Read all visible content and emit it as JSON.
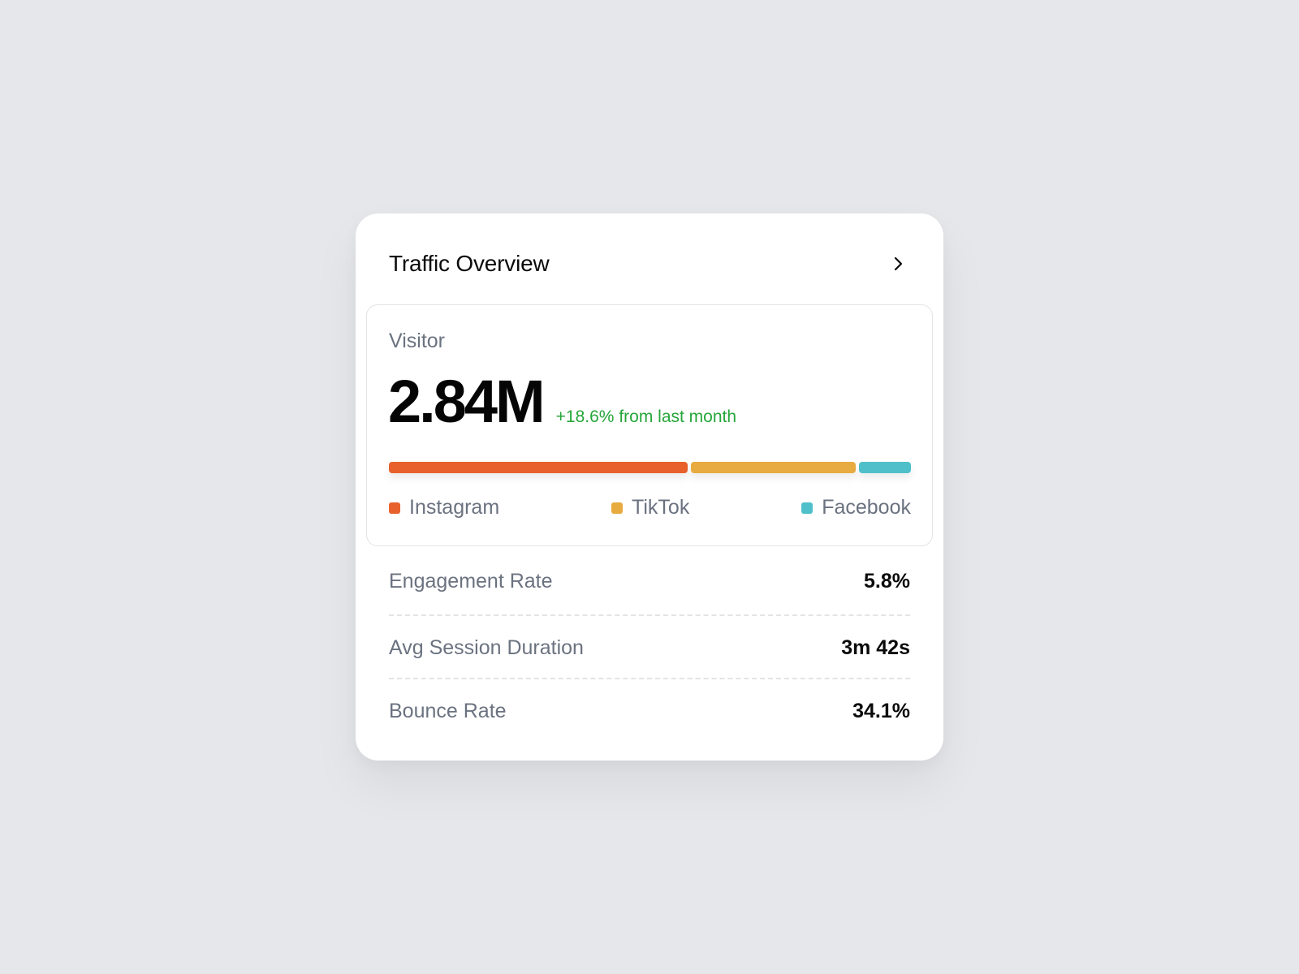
{
  "card": {
    "title": "Traffic Overview",
    "action_icon": "chevron-right-icon"
  },
  "visitor": {
    "label": "Visitor",
    "value": "2.84M",
    "change": "+18.6% from last month",
    "change_color": "#27a63a"
  },
  "traffic_sources": {
    "segments": [
      {
        "name": "Instagram",
        "share": 0.58,
        "color": "#e8612c"
      },
      {
        "name": "TikTok",
        "share": 0.32,
        "color": "#e8ab3f"
      },
      {
        "name": "Facebook",
        "share": 0.1,
        "color": "#4fc0c9"
      }
    ]
  },
  "metrics": [
    {
      "label": "Engagement Rate",
      "value": "5.8%"
    },
    {
      "label": "Avg Session Duration",
      "value": "3m 42s"
    },
    {
      "label": "Bounce Rate",
      "value": "34.1%"
    }
  ]
}
